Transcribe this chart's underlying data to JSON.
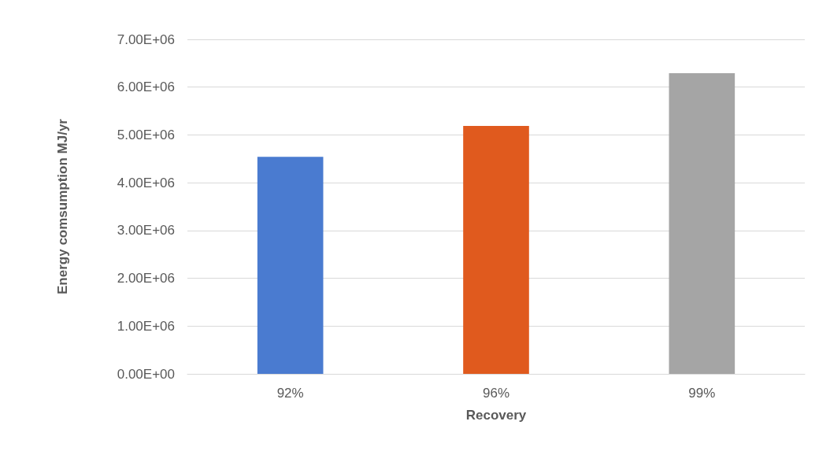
{
  "chart_data": {
    "type": "bar",
    "xlabel": "Recovery",
    "ylabel": "Energy comsumption MJ/yr",
    "categories": [
      "92%",
      "96%",
      "99%"
    ],
    "values": [
      4540000,
      5190000,
      6290000
    ],
    "colors": [
      "#4a7bd0",
      "#e05a1e",
      "#a5a5a5"
    ],
    "ylim": [
      0,
      7000000
    ],
    "yticks": [
      {
        "value": 0,
        "label": "0.00E+00"
      },
      {
        "value": 1000000,
        "label": "1.00E+06"
      },
      {
        "value": 2000000,
        "label": "2.00E+06"
      },
      {
        "value": 3000000,
        "label": "3.00E+06"
      },
      {
        "value": 4000000,
        "label": "4.00E+06"
      },
      {
        "value": 5000000,
        "label": "5.00E+06"
      },
      {
        "value": 6000000,
        "label": "6.00E+06"
      },
      {
        "value": 7000000,
        "label": "7.00E+06"
      }
    ],
    "grid": "y"
  }
}
